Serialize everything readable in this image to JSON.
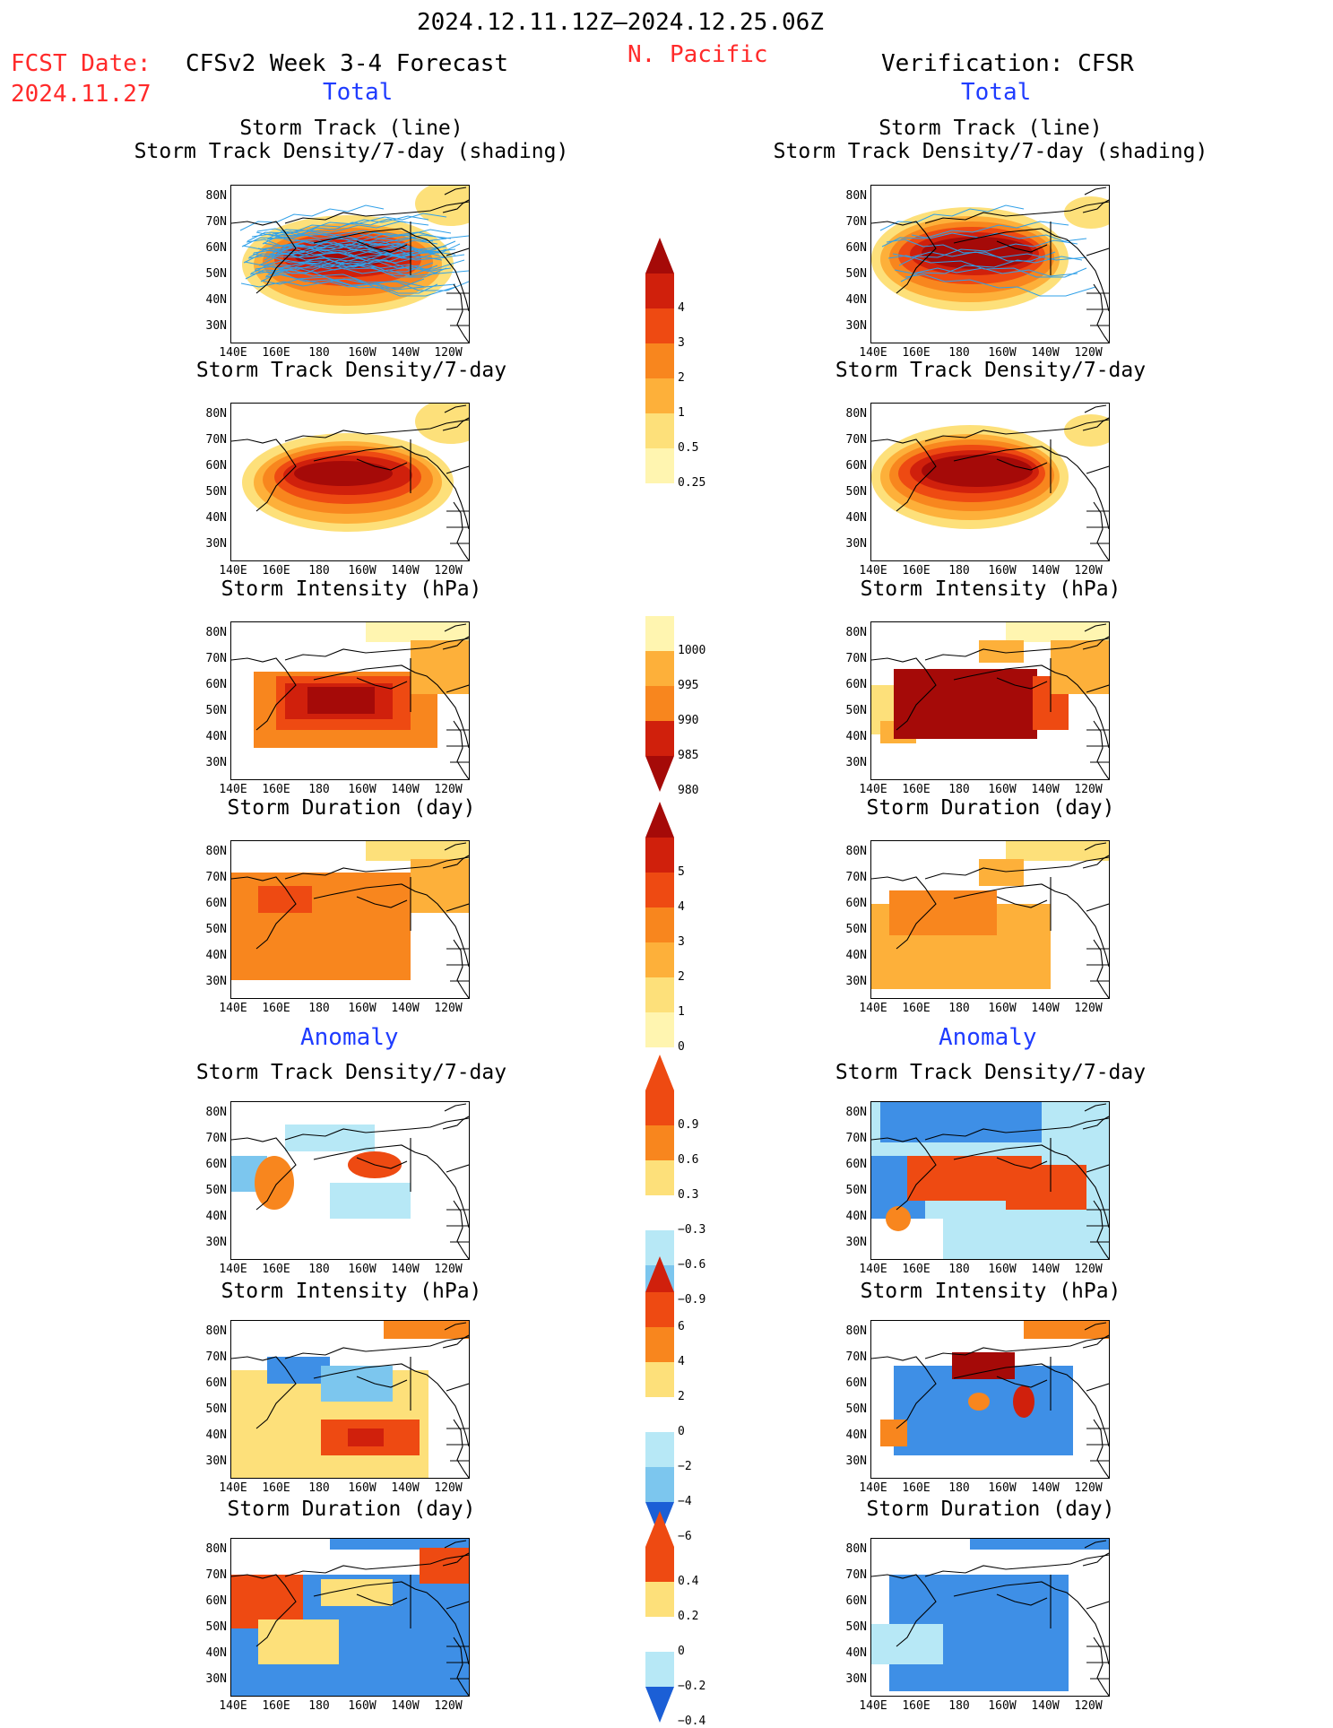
{
  "header": {
    "period": "2024.12.11.12Z–2024.12.25.06Z",
    "region": "N. Pacific",
    "fcst_label": "FCST Date:",
    "fcst_date": "2024.11.27",
    "left_title": "CFSv2 Week 3-4 Forecast",
    "right_title": "Verification: CFSR",
    "total_label": "Total",
    "anomaly_label": "Anomaly"
  },
  "panels": {
    "track_title_1": "Storm Track (line)",
    "track_title_2": "Storm Track Density/7-day (shading)",
    "density": "Storm Track Density/7-day",
    "intensity": "Storm Intensity (hPa)",
    "duration": "Storm Duration (day)"
  },
  "axes": {
    "lat_labels": [
      "80N",
      "70N",
      "60N",
      "50N",
      "40N",
      "30N"
    ],
    "lon_labels": [
      "140E",
      "160E",
      "180",
      "160W",
      "140W",
      "120W"
    ]
  },
  "colorbars": {
    "density": [
      "4",
      "3",
      "2",
      "1",
      "0.5",
      "0.25"
    ],
    "intensity": [
      "1000",
      "995",
      "990",
      "985",
      "980"
    ],
    "duration": [
      "5",
      "4",
      "3",
      "2",
      "1",
      "0"
    ],
    "density_anom": [
      "0.9",
      "0.6",
      "0.3",
      "−0.3",
      "−0.6",
      "−0.9"
    ],
    "intensity_anom": [
      "6",
      "4",
      "2",
      "0",
      "−2",
      "−4",
      "−6"
    ],
    "duration_anom": [
      "0.4",
      "0.2",
      "0",
      "−0.2",
      "−0.4"
    ]
  },
  "colors": {
    "yellow_light": "#fff5b0",
    "yellow": "#fde07a",
    "orange_light": "#fdb03a",
    "orange": "#f8861e",
    "red_orange": "#ee4a12",
    "red": "#d0200c",
    "dark_red": "#a50a08",
    "blue_light": "#b7e8f6",
    "blue_mid": "#7cc6ee",
    "blue": "#3e8fe6",
    "blue_dark": "#1b5fd6",
    "track_line": "#30a0e8",
    "header_red": "#ff2a2a",
    "header_blue": "#1f3cff"
  }
}
